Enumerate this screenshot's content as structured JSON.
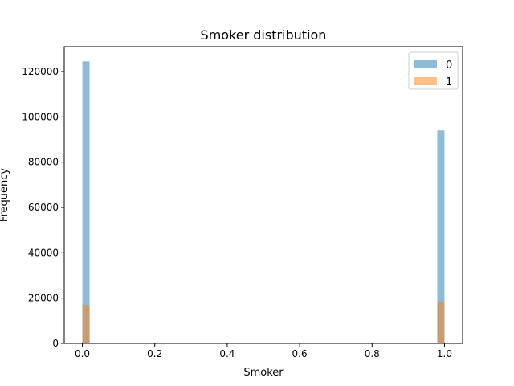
{
  "chart_data": {
    "type": "bar",
    "title": "Smoker distribution",
    "xlabel": "Smoker",
    "ylabel": "Frequency",
    "xlim": [
      -0.05,
      1.05
    ],
    "ylim": [
      0,
      131000
    ],
    "x_ticks": [
      0.0,
      0.2,
      0.4,
      0.6,
      0.8,
      1.0
    ],
    "x_tick_labels": [
      "0.0",
      "0.2",
      "0.4",
      "0.6",
      "0.8",
      "1.0"
    ],
    "y_ticks": [
      0,
      20000,
      40000,
      60000,
      80000,
      100000,
      120000
    ],
    "y_tick_labels": [
      "0",
      "20000",
      "40000",
      "60000",
      "80000",
      "100000",
      "120000"
    ],
    "bin_width": 0.02,
    "grid": false,
    "legend_position": "top-right",
    "series": [
      {
        "name": "0",
        "color": "#1f77b4",
        "opacity": 0.5,
        "bars": [
          {
            "x_start": 0.0,
            "x_end": 0.02,
            "value": 124500
          },
          {
            "x_start": 0.98,
            "x_end": 1.0,
            "value": 94000
          }
        ]
      },
      {
        "name": "1",
        "color": "#ff7f0e",
        "opacity": 0.5,
        "bars": [
          {
            "x_start": 0.0,
            "x_end": 0.02,
            "value": 17000
          },
          {
            "x_start": 0.98,
            "x_end": 1.0,
            "value": 18500
          }
        ]
      }
    ]
  }
}
